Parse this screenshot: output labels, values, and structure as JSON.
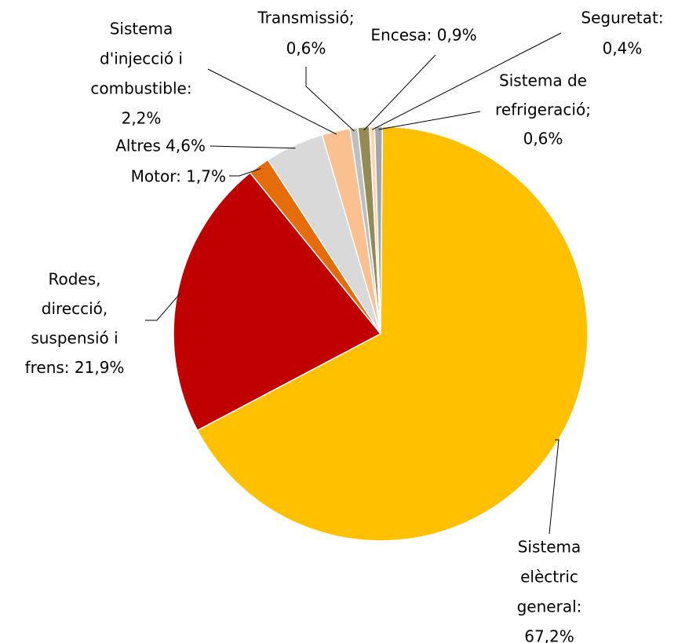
{
  "chart_data": {
    "type": "pie",
    "values": [
      67.2,
      21.9,
      1.7,
      4.6,
      2.2,
      0.6,
      0.9,
      0.4,
      0.6
    ],
    "value_labels": [
      [
        "Sistema",
        "elèctric",
        "general:",
        "67,2%"
      ],
      [
        "Rodes,",
        "direcció,",
        "suspensió i",
        "frens: 21,9%"
      ],
      [
        "Motor: 1,7%"
      ],
      [
        "Altres 4,6%"
      ],
      [
        "Sistema",
        "d'injecció i",
        "combustible:",
        "2,2%"
      ],
      [
        "Transmissió;",
        "0,6%"
      ],
      [
        "Encesa: 0,9%"
      ],
      [
        "Seguretat:",
        "0,4%"
      ],
      [
        "Sistema de",
        "refrigeració;",
        "0,6%"
      ]
    ],
    "colors": [
      "#ffc000",
      "#c00000",
      "#e46c0a",
      "#d9d9d9",
      "#fac090",
      "#bfbfbf",
      "#948a54",
      "#fcd5b5",
      "#a6a6a6"
    ]
  }
}
